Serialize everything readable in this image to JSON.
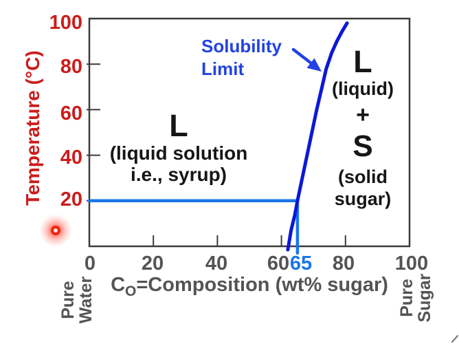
{
  "chart_data": {
    "type": "line",
    "title": "",
    "xlabel": "CO=Composition (wt% sugar)",
    "ylabel": "Temperature (°C)",
    "xlim": [
      0,
      100
    ],
    "ylim": [
      0,
      100
    ],
    "grid": false,
    "legend": false,
    "x_ticks": [
      0,
      20,
      40,
      60,
      80,
      100
    ],
    "y_ticks": [
      20,
      40,
      60,
      80,
      100
    ],
    "x_tick_marks": [
      20,
      40,
      60,
      80
    ],
    "y_tick_marks": [
      20,
      40,
      60,
      80
    ],
    "highlight_x_tick": {
      "value": 65,
      "label": "65",
      "color": "#1b76ea"
    },
    "series": [
      {
        "name": "Solubility Limit",
        "color": "#0b18d6",
        "points": [
          [
            62,
            -1.5
          ],
          [
            63,
            7
          ],
          [
            64.2,
            14
          ],
          [
            65,
            20
          ],
          [
            66.5,
            30
          ],
          [
            68,
            40
          ],
          [
            69.5,
            50
          ],
          [
            71,
            60
          ],
          [
            72.5,
            69
          ],
          [
            74,
            78
          ],
          [
            75.7,
            85
          ],
          [
            77.3,
            90
          ],
          [
            79,
            94.5
          ],
          [
            80.5,
            98
          ]
        ]
      }
    ],
    "tie_lines": [
      {
        "name": "temperature-20C",
        "color": "#1b76ea",
        "points": [
          [
            0,
            20
          ],
          [
            65,
            20
          ]
        ]
      },
      {
        "name": "composition-65",
        "color": "#1b76ea",
        "points": [
          [
            65,
            20
          ],
          [
            65,
            -3
          ]
        ]
      }
    ]
  },
  "y_axis": {
    "title": "Temperature (°C)",
    "tick_labels": [
      "100",
      "80",
      "60",
      "40",
      "20"
    ]
  },
  "x_axis": {
    "title_symbol": "C",
    "title_subscript": "O",
    "title_rest": "=Composition (wt% sugar)",
    "tick_labels": [
      "0",
      "20",
      "40",
      "60",
      "80",
      "100"
    ],
    "highlight_tick_label": "65"
  },
  "callout": {
    "line1": "Solubility",
    "line2": "Limit"
  },
  "regions": {
    "liquid": {
      "symbol": "L",
      "desc_line1": "(liquid solution",
      "desc_line2": "i.e., syrup)"
    },
    "liquid_plus_solid": {
      "symbol_liquid": "L",
      "desc_liquid": "(liquid)",
      "plus": "+",
      "symbol_solid": "S",
      "desc_solid_line1": "(solid",
      "desc_solid_line2": "sugar)"
    }
  },
  "edge_labels": {
    "left_line1": "Pure",
    "left_line2": "Water",
    "right_line1": "Pure",
    "right_line2": "Sugar"
  },
  "colors": {
    "axis_red": "#cc1c1c",
    "axis_gray": "#545454",
    "frame_gray": "#3a3a3a",
    "curve_blue": "#0b18d6",
    "tie_blue": "#1b76ea",
    "callout_blue": "#2342e2",
    "region_black": "#161616"
  }
}
